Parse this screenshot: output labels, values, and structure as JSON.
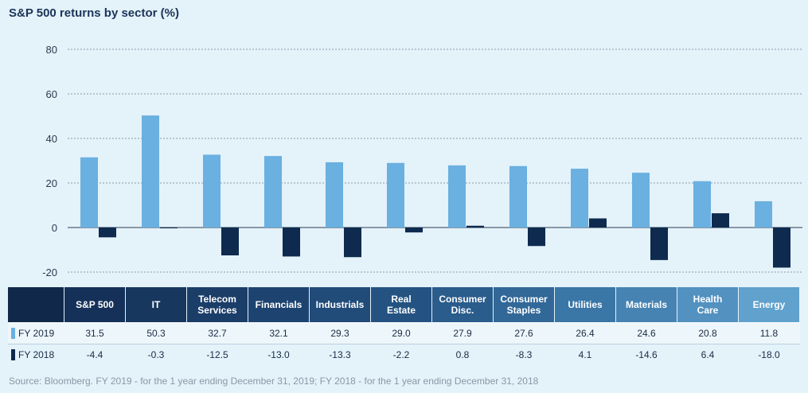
{
  "title": "S&P 500 returns by sector (%)",
  "source": "Source: Bloomberg. FY 2019 - for the 1 year ending December 31, 2019; FY 2018 - for the 1 year ending December 31, 2018",
  "header_colors": [
    "#15315a",
    "#17375f",
    "#1b3e69",
    "#1d4470",
    "#214b79",
    "#245382",
    "#2a5c8c",
    "#316898",
    "#3a76a6",
    "#4683b3",
    "#5291c0",
    "#60a1cd"
  ],
  "chart_data": {
    "type": "bar",
    "title": "S&P 500 returns by sector (%)",
    "categories": [
      "S&P 500",
      "IT",
      "Telecom Services",
      "Financials",
      "Industrials",
      "Real Estate",
      "Consumer Disc.",
      "Consumer Staples",
      "Utilities",
      "Materials",
      "Health Care",
      "Energy"
    ],
    "category_lines": [
      [
        "S&P 500"
      ],
      [
        "IT"
      ],
      [
        "Telecom",
        "Services"
      ],
      [
        "Financials"
      ],
      [
        "Industrials"
      ],
      [
        "Real",
        "Estate"
      ],
      [
        "Consumer",
        "Disc."
      ],
      [
        "Consumer",
        "Staples"
      ],
      [
        "Utilities"
      ],
      [
        "Materials"
      ],
      [
        "Health",
        "Care"
      ],
      [
        "Energy"
      ]
    ],
    "series": [
      {
        "name": "FY 2019",
        "color": "#6ab0e0",
        "values": [
          31.5,
          50.3,
          32.7,
          32.1,
          29.3,
          29.0,
          27.9,
          27.6,
          26.4,
          24.6,
          20.8,
          11.8
        ],
        "labels": [
          "31.5",
          "50.3",
          "32.7",
          "32.1",
          "29.3",
          "29.0",
          "27.9",
          "27.6",
          "26.4",
          "24.6",
          "20.8",
          "11.8"
        ]
      },
      {
        "name": "FY 2018",
        "color": "#0e2a4e",
        "values": [
          -4.4,
          -0.3,
          -12.5,
          -13.0,
          -13.3,
          -2.2,
          0.8,
          -8.3,
          4.1,
          -14.6,
          6.4,
          -18.0
        ],
        "labels": [
          "-4.4",
          "-0.3",
          "-12.5",
          "-13.0",
          "-13.3",
          "-2.2",
          "0.8",
          "-8.3",
          "4.1",
          "-14.6",
          "6.4",
          "-18.0"
        ]
      }
    ],
    "yticks": [
      "80",
      "60",
      "40",
      "20",
      "0",
      "-20"
    ],
    "ylim": [
      -20,
      80
    ],
    "grid": true
  }
}
